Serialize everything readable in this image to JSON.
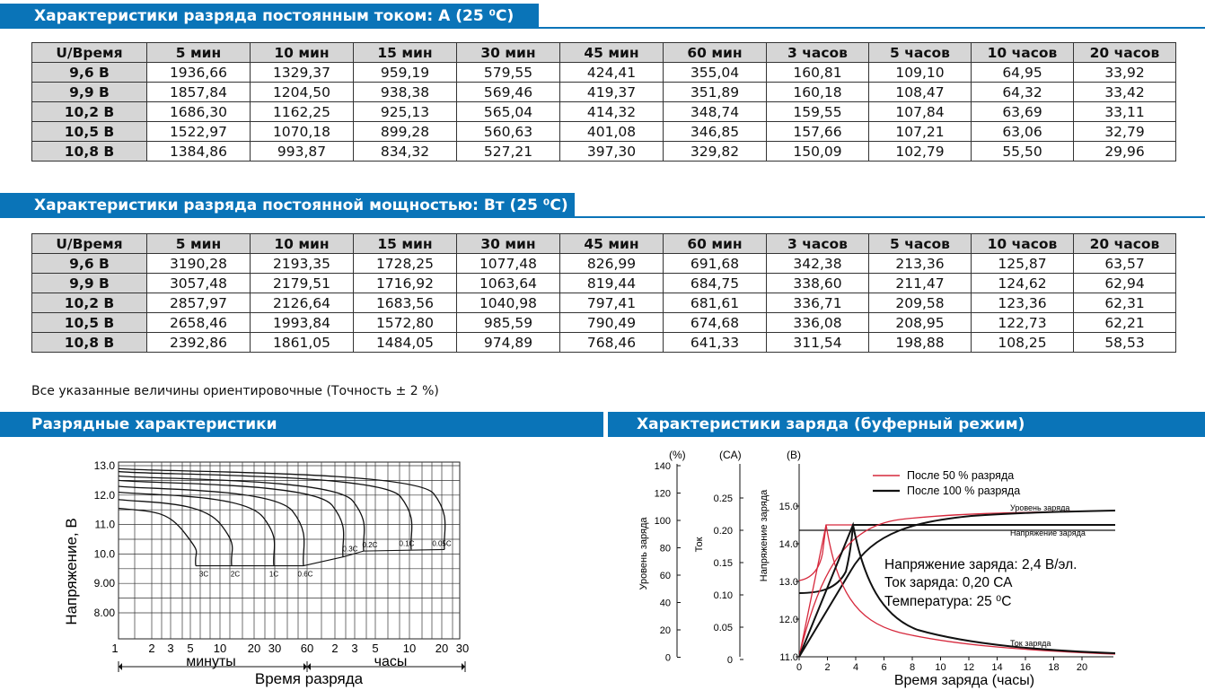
{
  "banner_current": "Характеристики разряда постоянным током: А (25 ⁰С)",
  "banner_power": "Характеристики разряда постоянной мощностью: Вт (25 ⁰С)",
  "banner_discharge": "Разрядные характеристики",
  "banner_charge": "Характеристики заряда (буферный режим)",
  "headers": [
    "U/Время",
    "5 мин",
    "10 мин",
    "15 мин",
    "30 мин",
    "45 мин",
    "60 мин",
    "3 часов",
    "5 часов",
    "10 часов",
    "20 часов"
  ],
  "current_table": [
    [
      "9,6 В",
      "1936,66",
      "1329,37",
      "959,19",
      "579,55",
      "424,41",
      "355,04",
      "160,81",
      "109,10",
      "64,95",
      "33,92"
    ],
    [
      "9,9 В",
      "1857,84",
      "1204,50",
      "938,38",
      "569,46",
      "419,37",
      "351,89",
      "160,18",
      "108,47",
      "64,32",
      "33,42"
    ],
    [
      "10,2 В",
      "1686,30",
      "1162,25",
      "925,13",
      "565,04",
      "414,32",
      "348,74",
      "159,55",
      "107,84",
      "63,69",
      "33,11"
    ],
    [
      "10,5 В",
      "1522,97",
      "1070,18",
      "899,28",
      "560,63",
      "401,08",
      "346,85",
      "157,66",
      "107,21",
      "63,06",
      "32,79"
    ],
    [
      "10,8 В",
      "1384,86",
      "993,87",
      "834,32",
      "527,21",
      "397,30",
      "329,82",
      "150,09",
      "102,79",
      "55,50",
      "29,96"
    ]
  ],
  "power_table": [
    [
      "9,6 В",
      "3190,28",
      "2193,35",
      "1728,25",
      "1077,48",
      "826,99",
      "691,68",
      "342,38",
      "213,36",
      "125,87",
      "63,57"
    ],
    [
      "9,9 В",
      "3057,48",
      "2179,51",
      "1716,92",
      "1063,64",
      "819,44",
      "684,75",
      "338,60",
      "211,47",
      "124,62",
      "62,94"
    ],
    [
      "10,2 В",
      "2857,97",
      "2126,64",
      "1683,56",
      "1040,98",
      "797,41",
      "681,61",
      "336,71",
      "209,58",
      "123,36",
      "62,31"
    ],
    [
      "10,5 В",
      "2658,46",
      "1993,84",
      "1572,80",
      "985,59",
      "790,49",
      "674,68",
      "336,08",
      "208,95",
      "122,73",
      "62,21"
    ],
    [
      "10,8 В",
      "2392,86",
      "1861,05",
      "1484,05",
      "974,89",
      "768,46",
      "641,33",
      "311,54",
      "198,88",
      "108,25",
      "58,53"
    ]
  ],
  "note": "Все указанные величины ориентировочные (Точность ± 2 %)",
  "chart_data": [
    {
      "type": "line",
      "title": "Разрядные характеристики",
      "ylabel": "Напряжение, В",
      "xlabel": "Время разряда",
      "x_unit_minutes": "минуты",
      "x_unit_hours": "часы",
      "yticks": [
        "13.0",
        "12.0",
        "11.0",
        "10.0",
        "9.00",
        "8.00"
      ],
      "xticks_minutes": [
        "1",
        "2",
        "3",
        "5",
        "10",
        "20",
        "30",
        "60"
      ],
      "xticks_hours": [
        "2",
        "3",
        "5",
        "10",
        "20",
        "30"
      ],
      "series_labels": [
        "3C",
        "2C",
        "1C",
        "0.6C",
        "0.3C",
        "0.2C",
        "0.1C",
        "0.05C"
      ]
    },
    {
      "type": "line",
      "title": "Характеристики заряда (буферный режим)",
      "xlabel": "Время заряда (часы)",
      "axis_units": {
        "left": "(%)",
        "middle": "(CA)",
        "right": "(B)"
      },
      "left_axis_label": "Уровень заряда",
      "middle_axis_label": "Ток",
      "right_axis_label": "Напряжение заряда",
      "left_ticks": [
        "140",
        "120",
        "100",
        "80",
        "60",
        "40",
        "20",
        "0"
      ],
      "middle_ticks": [
        "0.25",
        "0.20",
        "0.15",
        "0.10",
        "0.05",
        "0"
      ],
      "right_ticks": [
        "15.0",
        "14.0",
        "13.0",
        "12.0",
        "11.0"
      ],
      "xticks": [
        "0",
        "2",
        "4",
        "6",
        "8",
        "10",
        "12",
        "14",
        "16",
        "18",
        "20"
      ],
      "legend": [
        "После 50 % разряда",
        "После 100 % разряда"
      ],
      "curve_labels": {
        "charge_level": "Уровень заряда",
        "charge_voltage": "Напряжение заряда",
        "charge_current": "Ток заряда"
      },
      "conditions": [
        "Напряжение заряда: 2,4 В/эл.",
        "Ток заряда: 0,20 СА",
        "Температура: 25 ⁰С"
      ],
      "colors": {
        "after_50": "#d6283c",
        "after_100": "#111111"
      }
    }
  ]
}
